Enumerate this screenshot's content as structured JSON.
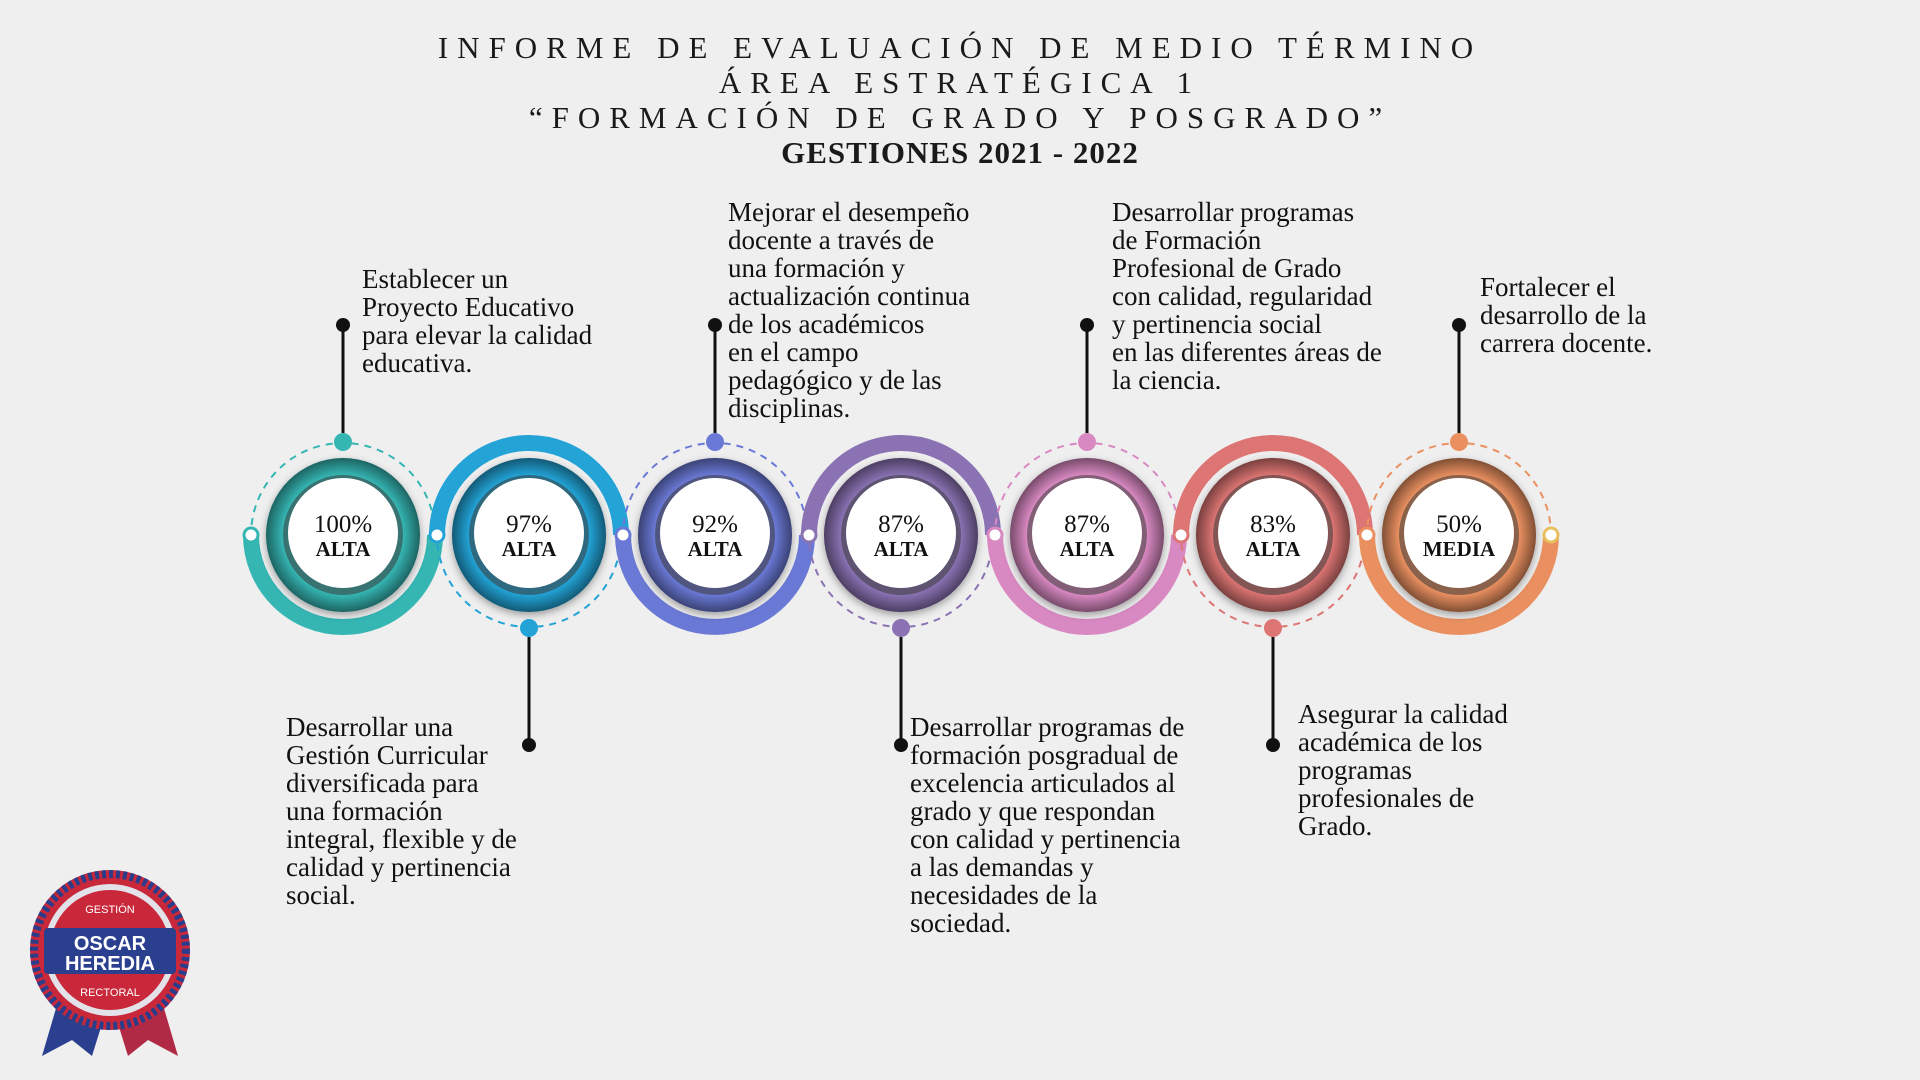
{
  "header": {
    "line1": "INFORME DE EVALUACIÓN DE MEDIO TÉRMINO",
    "line2": "ÁREA ESTRATÉGICA 1",
    "line3": "“FORMACIÓN DE GRADO Y POSGRADO”",
    "line4": "GESTIONES 2021 - 2022"
  },
  "colors": {
    "background": "#efefef",
    "stages": [
      "#35b6b3",
      "#23a3d6",
      "#6a79d6",
      "#8a72b3",
      "#d989c2",
      "#dc7573",
      "#ea9060"
    ]
  },
  "stages": [
    {
      "percent": "100%",
      "level": "ALTA",
      "position": "top",
      "lines": [
        "Establecer un",
        "Proyecto Educativo",
        "para elevar la calidad",
        "educativa."
      ]
    },
    {
      "percent": "97%",
      "level": "ALTA",
      "position": "bottom",
      "lines": [
        "Desarrollar una",
        "Gestión Curricular",
        "diversificada para",
        "una formación",
        "integral, flexible y de",
        "calidad y pertinencia",
        "social."
      ]
    },
    {
      "percent": "92%",
      "level": "ALTA",
      "position": "top",
      "lines": [
        "Mejorar el desempeño",
        "docente a través de",
        "una formación y",
        "actualización continua",
        "de los académicos",
        "en el campo",
        "pedagógico y de las",
        "disciplinas."
      ]
    },
    {
      "percent": "87%",
      "level": "ALTA",
      "position": "bottom",
      "lines": [
        "Desarrollar programas de",
        "formación posgradual de",
        "excelencia articulados al",
        "grado y que respondan",
        "con  calidad y pertinencia",
        "a las demandas y",
        "necesidades de la",
        "sociedad."
      ]
    },
    {
      "percent": "87%",
      "level": "ALTA",
      "position": "top",
      "lines": [
        "Desarrollar programas",
        "de Formación",
        "Profesional de Grado",
        "con calidad, regularidad",
        "y pertinencia social",
        "en las diferentes áreas de",
        "la ciencia."
      ]
    },
    {
      "percent": "83%",
      "level": "ALTA",
      "position": "bottom",
      "lines": [
        "Asegurar la calidad",
        "académica de los",
        "programas",
        "profesionales de",
        "Grado."
      ]
    },
    {
      "percent": "50%",
      "level": "MEDIA",
      "position": "top",
      "lines": [
        "Fortalecer el",
        "desarrollo de la",
        "carrera docente."
      ]
    }
  ],
  "logo": {
    "top": "GESTIÓN",
    "name1": "OSCAR",
    "name2": "HEREDIA",
    "bottom": "RECTORAL"
  }
}
